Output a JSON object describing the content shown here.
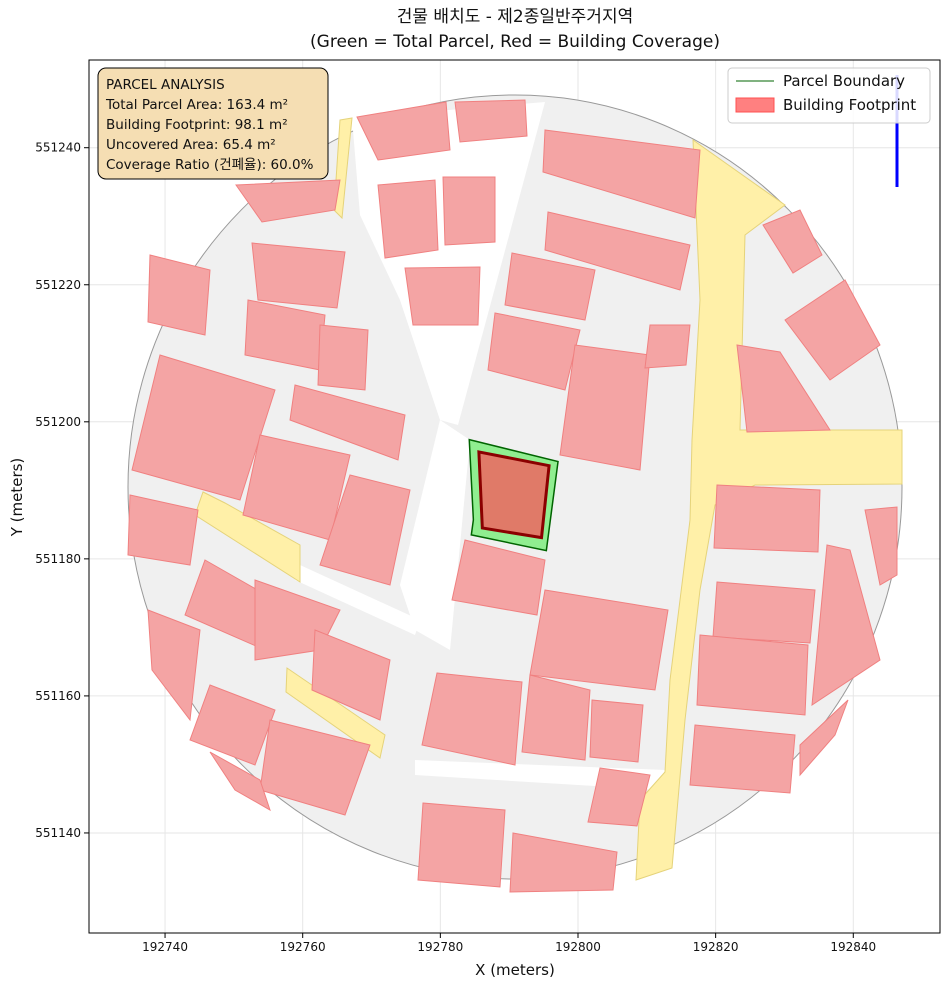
{
  "chart_data": {
    "type": "polygon",
    "title": "건물 배치도 - 제2종일반주거지역",
    "subtitle": "(Green = Total Parcel, Red = Building Coverage)",
    "x_label": "X (meters)",
    "y_label": "Y (meters)",
    "xlim": [
      192728.95,
      192852.6
    ],
    "ylim": [
      551125.4,
      551252.8
    ],
    "xticks": [
      192740,
      192760,
      192780,
      192800,
      192820,
      192840
    ],
    "yticks": [
      551140,
      551160,
      551180,
      551200,
      551220,
      551240
    ],
    "grid": true,
    "legend_position": "upper right",
    "series": [
      {
        "name": "Parcel Boundary",
        "color": "#006400",
        "fill": "#90ee90",
        "x": [
          192784.2,
          192797.1,
          192795.4,
          192784.5,
          192784.8
        ],
        "y": [
          551197.4,
          551194.2,
          551181.2,
          551183.5,
          551185.7
        ]
      },
      {
        "name": "Building Footprint",
        "color": "#8b0000",
        "fill": "#e07a68",
        "x": [
          192785.6,
          192795.8,
          192794.7,
          192786.1
        ],
        "y": [
          551195.6,
          551193.6,
          551183.1,
          551184.5
        ]
      }
    ],
    "annotation": [
      "PARCEL ANALYSIS",
      "Total Parcel Area: 163.4 m²",
      "Building Footprint: 98.1 m²",
      "Uncovered Area: 65.4 m²",
      "Coverage Ratio (건폐율): 60.0%"
    ]
  }
}
